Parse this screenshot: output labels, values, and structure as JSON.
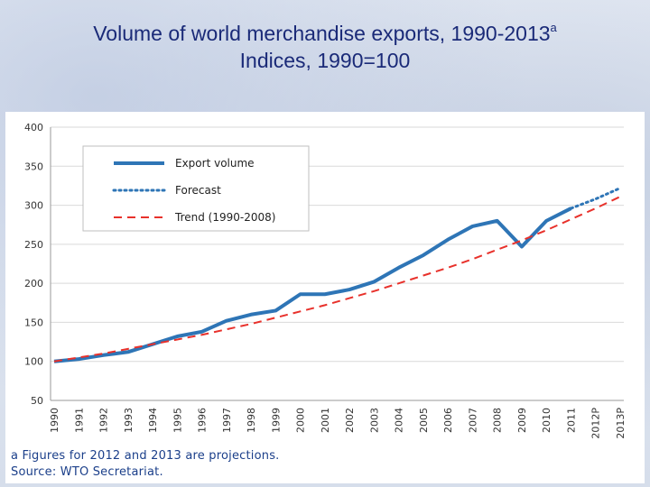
{
  "slide": {
    "title_line1": "Volume of world merchandise exports, 1990-2013",
    "title_superscript": "a",
    "title_line2": "Indices, 1990=100"
  },
  "notes": {
    "footnote": "a  Figures for 2012 and 2013 are projections.",
    "source": "Source: WTO Secretariat."
  },
  "chart_data": {
    "type": "line",
    "title": "Volume of world merchandise exports, 1990-2013",
    "subtitle": "Indices, 1990=100",
    "categories": [
      "1990",
      "1991",
      "1992",
      "1993",
      "1994",
      "1995",
      "1996",
      "1997",
      "1998",
      "1999",
      "2000",
      "2001",
      "2002",
      "2003",
      "2004",
      "2005",
      "2006",
      "2007",
      "2008",
      "2009",
      "2010",
      "2011",
      "2012P",
      "2013P"
    ],
    "ylim": [
      50,
      400
    ],
    "yticks": [
      50,
      100,
      150,
      200,
      250,
      300,
      350,
      400
    ],
    "grid": true,
    "legend_position": "top-left",
    "series": [
      {
        "name": "Export volume",
        "style": "solid",
        "color": "#2e75b6",
        "values": [
          100,
          103,
          108,
          112,
          122,
          132,
          138,
          152,
          160,
          165,
          186,
          186,
          192,
          202,
          220,
          236,
          256,
          273,
          280,
          247,
          280,
          296,
          null,
          null
        ]
      },
      {
        "name": "Forecast",
        "style": "dotted",
        "color": "#2e75b6",
        "values": [
          null,
          null,
          null,
          null,
          null,
          null,
          null,
          null,
          null,
          null,
          null,
          null,
          null,
          null,
          null,
          null,
          null,
          null,
          null,
          null,
          null,
          296,
          308,
          322
        ]
      },
      {
        "name": "Trend (1990-2008)",
        "style": "dashed",
        "color": "#e8312b",
        "values": [
          100,
          105,
          110,
          116,
          122,
          128,
          134,
          141,
          148,
          156,
          164,
          172,
          181,
          190,
          200,
          210,
          220,
          231,
          243,
          255,
          268,
          282,
          296,
          311
        ]
      }
    ]
  }
}
